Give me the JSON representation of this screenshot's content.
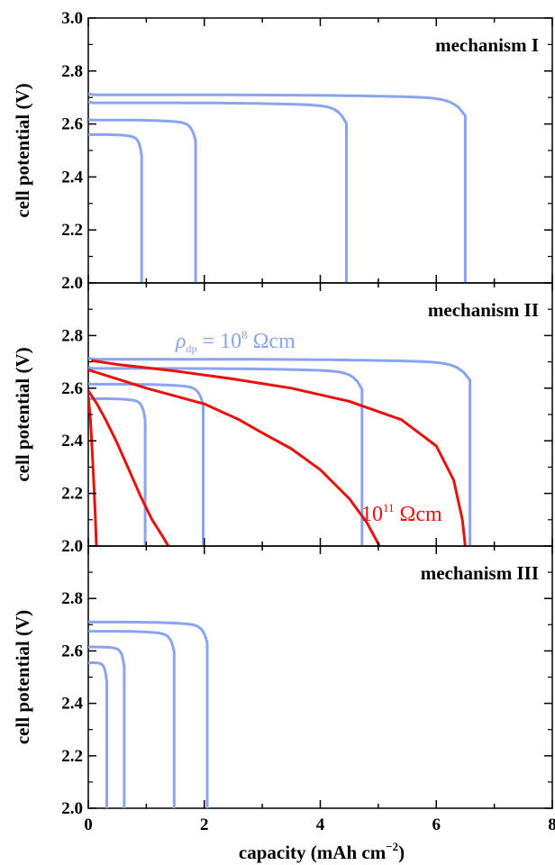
{
  "chart_data": [
    {
      "type": "line",
      "panel_label": "mechanism I",
      "ylabel": "cell potential (V)",
      "xlim": [
        0,
        8
      ],
      "ylim": [
        2.0,
        3.0
      ],
      "yticks": [
        2.0,
        2.2,
        2.4,
        2.6,
        2.8,
        3.0
      ],
      "ytick_labels": [
        "2.0",
        "2.2",
        "2.4",
        "2.6",
        "2.8",
        "3.0"
      ],
      "series_color": "#8aa4ee",
      "series": [
        {
          "plateau": 2.71,
          "end_capacity": 6.5
        },
        {
          "plateau": 2.68,
          "end_capacity": 4.45
        },
        {
          "plateau": 2.615,
          "end_capacity": 1.85
        },
        {
          "plateau": 2.56,
          "end_capacity": 0.92
        }
      ]
    },
    {
      "type": "line",
      "panel_label": "mechanism II",
      "ylabel": "cell potential (V)",
      "xlim": [
        0,
        8
      ],
      "ylim": [
        2.0,
        3.0
      ],
      "yticks": [
        2.0,
        2.2,
        2.4,
        2.6,
        2.8
      ],
      "ytick_labels": [
        "2.0",
        "2.2",
        "2.4",
        "2.6",
        "2.8"
      ],
      "annotations": [
        {
          "text": "ρ",
          "sub": "dp",
          "mid": " = 10",
          "sup": "8",
          "unit": " Ωcm",
          "color": "#8aa4ee"
        },
        {
          "text": "10",
          "sup": "11",
          "unit": " Ωcm",
          "color": "#e8120c"
        }
      ],
      "series": [
        {
          "group": "blue",
          "color": "#8aa4ee",
          "plateau": 2.71,
          "end_capacity": 6.58
        },
        {
          "group": "blue",
          "color": "#8aa4ee",
          "plateau": 2.675,
          "end_capacity": 4.72
        },
        {
          "group": "blue",
          "color": "#8aa4ee",
          "plateau": 2.615,
          "end_capacity": 1.98
        },
        {
          "group": "blue",
          "color": "#8aa4ee",
          "plateau": 2.56,
          "end_capacity": 0.98
        },
        {
          "group": "red",
          "color": "#e8120c",
          "points": [
            [
              0.05,
              2.705
            ],
            [
              0.5,
              2.69
            ],
            [
              1.5,
              2.665
            ],
            [
              2.5,
              2.635
            ],
            [
              3.5,
              2.6
            ],
            [
              4.5,
              2.55
            ],
            [
              5.4,
              2.48
            ],
            [
              6.0,
              2.38
            ],
            [
              6.3,
              2.25
            ],
            [
              6.45,
              2.1
            ],
            [
              6.5,
              2.0
            ]
          ]
        },
        {
          "group": "red",
          "color": "#e8120c",
          "points": [
            [
              0.0,
              2.67
            ],
            [
              0.5,
              2.635
            ],
            [
              1.0,
              2.6
            ],
            [
              1.5,
              2.57
            ],
            [
              2.0,
              2.54
            ],
            [
              2.6,
              2.48
            ],
            [
              3.0,
              2.43
            ],
            [
              3.5,
              2.37
            ],
            [
              4.0,
              2.29
            ],
            [
              4.5,
              2.18
            ],
            [
              4.8,
              2.09
            ],
            [
              5.02,
              2.0
            ]
          ]
        },
        {
          "group": "red",
          "color": "#e8120c",
          "points": [
            [
              0.0,
              2.59
            ],
            [
              0.15,
              2.54
            ],
            [
              0.3,
              2.48
            ],
            [
              0.5,
              2.39
            ],
            [
              0.7,
              2.29
            ],
            [
              0.9,
              2.19
            ],
            [
              1.1,
              2.1
            ],
            [
              1.3,
              2.03
            ],
            [
              1.38,
              2.0
            ]
          ]
        },
        {
          "group": "red",
          "color": "#e8120c",
          "points": [
            [
              0.0,
              2.57
            ],
            [
              0.04,
              2.47
            ],
            [
              0.07,
              2.35
            ],
            [
              0.1,
              2.22
            ],
            [
              0.12,
              2.12
            ],
            [
              0.14,
              2.0
            ]
          ]
        }
      ]
    },
    {
      "type": "line",
      "panel_label": "mechanism III",
      "ylabel": "cell potential (V)",
      "xlabel": "capacity (mAh cm",
      "xlabel_sup": "−2",
      "xlabel_end": ")",
      "xlim": [
        0,
        8
      ],
      "ylim": [
        2.0,
        3.0
      ],
      "xticks": [
        0,
        2,
        4,
        6,
        8
      ],
      "xtick_labels": [
        "0",
        "2",
        "4",
        "6",
        "8"
      ],
      "yticks": [
        2.0,
        2.2,
        2.4,
        2.6,
        2.8
      ],
      "ytick_labels": [
        "2.0",
        "2.2",
        "2.4",
        "2.6",
        "2.8"
      ],
      "series_color": "#8aa4ee",
      "series": [
        {
          "plateau": 2.71,
          "end_capacity": 2.05
        },
        {
          "plateau": 2.675,
          "end_capacity": 1.48
        },
        {
          "plateau": 2.615,
          "end_capacity": 0.62
        },
        {
          "plateau": 2.555,
          "end_capacity": 0.32
        }
      ]
    }
  ]
}
